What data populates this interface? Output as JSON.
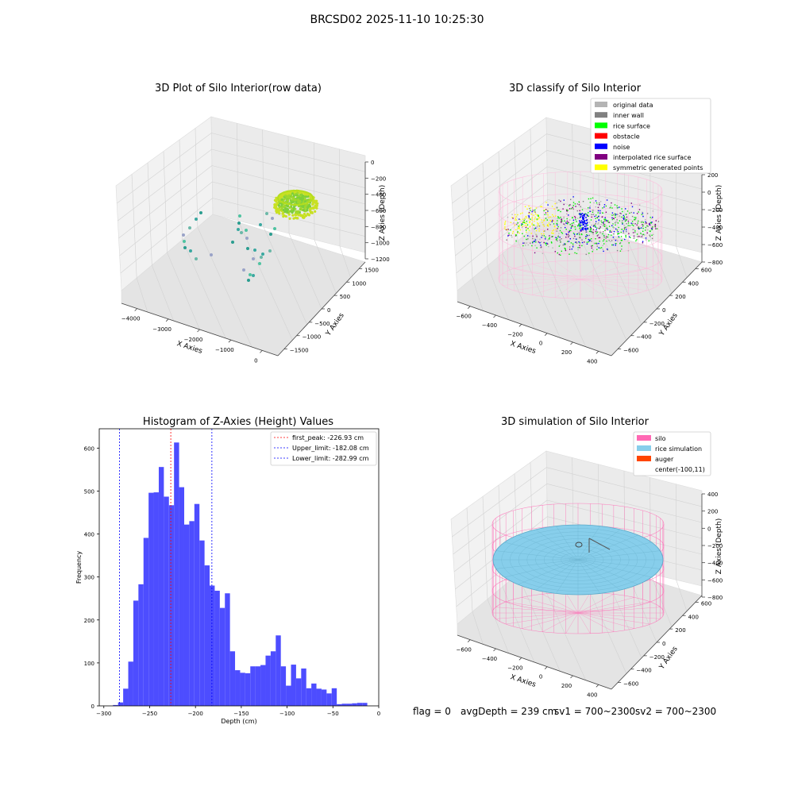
{
  "page": {
    "suptitle": "BRCSD02 2025-11-10 10:25:30"
  },
  "panels": {
    "raw": {
      "title": "3D Plot of Silo Interior(row data)",
      "xlabel": "X Axies",
      "ylabel": "Y Axies",
      "zlabel": "Z Axies (Depth)",
      "xticks": [
        "−4000",
        "−3000",
        "−2000",
        "−1000",
        "0"
      ],
      "yticks": [
        "−1500",
        "−1000",
        "−500",
        "0",
        "500",
        "1000",
        "1500"
      ],
      "zticks": [
        "0",
        "−200",
        "−400",
        "−600",
        "−800",
        "−1000",
        "−1200"
      ]
    },
    "classify": {
      "title": "3D classify of Silo Interior",
      "xlabel": "X Axies",
      "ylabel": "Y Axies",
      "zlabel": "Z Axies (Depth)",
      "xticks": [
        "−600",
        "−400",
        "−200",
        "0",
        "200",
        "400"
      ],
      "yticks": [
        "−600",
        "−400",
        "−200",
        "0",
        "200",
        "400",
        "600"
      ],
      "zticks": [
        "200",
        "0",
        "−200",
        "−400",
        "−600",
        "−800"
      ],
      "legend": [
        {
          "label": "original data",
          "color": "#b4b4b4"
        },
        {
          "label": "inner wall",
          "color": "#808080"
        },
        {
          "label": "rice surface",
          "color": "#00ff00"
        },
        {
          "label": "obstacle",
          "color": "#ff0000"
        },
        {
          "label": "noise",
          "color": "#0000ff"
        },
        {
          "label": "interpolated rice surface",
          "color": "#800080"
        },
        {
          "label": "symmetric generated points",
          "color": "#ffff00"
        }
      ]
    },
    "simulation": {
      "title": "3D simulation of Silo Interior",
      "xlabel": "X Axies",
      "ylabel": "Y Axies",
      "zlabel": "Z Axies (Depth)",
      "xticks": [
        "−600",
        "−400",
        "−200",
        "0",
        "200",
        "400"
      ],
      "yticks": [
        "−600",
        "−400",
        "−200",
        "0",
        "200",
        "400",
        "600"
      ],
      "zticks": [
        "400",
        "200",
        "0",
        "−200",
        "−400",
        "−600",
        "−800"
      ],
      "legend": [
        {
          "label": "silo",
          "color": "#ff69b4"
        },
        {
          "label": "rice simulation",
          "color": "#87ceeb"
        },
        {
          "label": "auger",
          "color": "#ff4500"
        },
        {
          "label": "center(-100,11)",
          "color": ""
        }
      ]
    }
  },
  "footer": {
    "flag": "flag = 0",
    "avg": "avgDepth = 239 cm",
    "sv1": "sv1 = 700~2300",
    "sv2": "sv2 = 700~2300"
  },
  "chart_data": [
    {
      "type": "bar",
      "title": "Histogram of Z-Axies (Height) Values",
      "xlabel": "Depth (cm)",
      "ylabel": "Frequency",
      "xlim": [
        -305,
        0
      ],
      "ylim": [
        0,
        645
      ],
      "xticks": [
        -300,
        -250,
        -200,
        -150,
        -100,
        -50,
        0
      ],
      "yticks": [
        0,
        100,
        200,
        300,
        400,
        500,
        600
      ],
      "bin_start": -290,
      "bin_width": 5.55,
      "values": [
        2,
        8,
        40,
        103,
        245,
        283,
        391,
        496,
        497,
        556,
        487,
        467,
        613,
        509,
        422,
        430,
        470,
        385,
        327,
        280,
        268,
        228,
        262,
        127,
        83,
        77,
        76,
        92,
        92,
        95,
        117,
        127,
        164,
        92,
        47,
        96,
        64,
        87,
        41,
        52,
        40,
        38,
        29,
        41,
        4,
        5,
        5,
        6,
        7,
        7
      ],
      "vlines": [
        {
          "label": "first_peak: -226.93 cm",
          "x": -226.93,
          "color": "#ff0000"
        },
        {
          "label": "Upper_limit: -182.08 cm",
          "x": -182.08,
          "color": "#0000ff"
        },
        {
          "label": "Lower_limit: -282.99 cm",
          "x": -282.99,
          "color": "#0000ff"
        }
      ],
      "bar_color": "#4d4dff"
    }
  ]
}
